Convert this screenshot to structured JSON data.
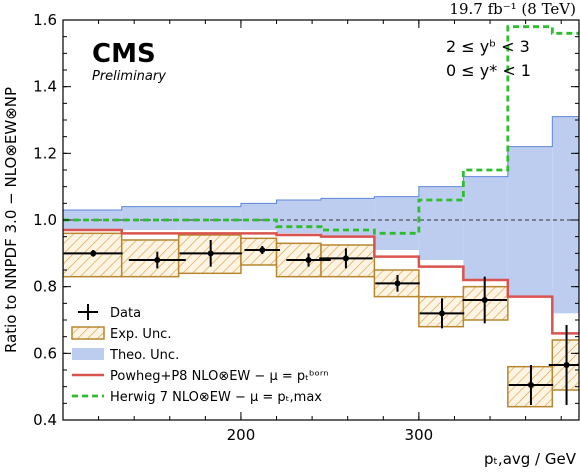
{
  "chart_data": {
    "type": "line",
    "lumi_label": "19.7 fb⁻¹ (8 TeV)",
    "experiment": "CMS",
    "status": "Preliminary",
    "cuts": [
      "2 ≤ yᵇ < 3",
      "0 ≤ y* < 1"
    ],
    "ylabel": "Ratio to NNPDF 3.0 − NLO⊗EW⊗NP",
    "xlabel": "pₜ,avg / GeV",
    "xlim": [
      100,
      390
    ],
    "ylim": [
      0.4,
      1.6
    ],
    "xticks": [
      200,
      300
    ],
    "yticks": [
      0.4,
      0.6,
      0.8,
      1.0,
      1.2,
      1.4,
      1.6
    ],
    "reference_line": 1.0,
    "bin_edges": [
      100,
      133,
      165,
      200,
      220,
      245,
      275,
      300,
      325,
      350,
      375,
      395
    ],
    "series": [
      {
        "name": "Data",
        "style": "points",
        "points": [
          {
            "x": 117,
            "y": 0.9,
            "yerr": 0.01
          },
          {
            "x": 153,
            "y": 0.88,
            "yerr": 0.025
          },
          {
            "x": 183,
            "y": 0.9,
            "yerr": 0.04
          },
          {
            "x": 212,
            "y": 0.91,
            "yerr": 0.012
          },
          {
            "x": 238,
            "y": 0.88,
            "yerr": 0.02
          },
          {
            "x": 259,
            "y": 0.885,
            "yerr": 0.03
          },
          {
            "x": 288,
            "y": 0.81,
            "yerr": 0.025
          },
          {
            "x": 313,
            "y": 0.72,
            "yerr": 0.045
          },
          {
            "x": 337,
            "y": 0.76,
            "yerr": 0.07
          },
          {
            "x": 363,
            "y": 0.505,
            "yerr": 0.06
          },
          {
            "x": 383,
            "y": 0.565,
            "yerr": 0.12
          }
        ]
      },
      {
        "name": "Exp. Unc.",
        "style": "hatched_band",
        "low": [
          0.83,
          0.83,
          0.84,
          0.865,
          0.83,
          0.83,
          0.77,
          0.68,
          0.7,
          0.44,
          0.49
        ],
        "high": [
          0.96,
          0.94,
          0.955,
          0.945,
          0.93,
          0.925,
          0.85,
          0.77,
          0.8,
          0.56,
          0.64
        ]
      },
      {
        "name": "Theo. Unc.",
        "style": "band",
        "low": [
          0.97,
          0.97,
          0.97,
          0.97,
          0.96,
          0.95,
          0.91,
          0.88,
          0.82,
          0.77,
          0.72
        ],
        "high": [
          1.03,
          1.04,
          1.04,
          1.05,
          1.06,
          1.065,
          1.07,
          1.1,
          1.13,
          1.22,
          1.31
        ]
      },
      {
        "name": "Powheg+P8 NLO⊗EW − μ = pₜᵇᵒʳⁿ",
        "style": "step",
        "color": "#d9534f",
        "values": [
          0.97,
          0.96,
          0.96,
          0.96,
          0.955,
          0.95,
          0.89,
          0.86,
          0.82,
          0.77,
          0.66
        ]
      },
      {
        "name": "Herwig 7 NLO⊗EW − μ = pₜ,max",
        "style": "step_dashed",
        "color": "#2ebd2e",
        "values": [
          1.0,
          1.0,
          1.0,
          1.0,
          0.98,
          0.97,
          0.96,
          1.06,
          1.15,
          1.58,
          1.56
        ]
      }
    ],
    "legend": {
      "position": "bottom-left",
      "entries": [
        "Data",
        "Exp. Unc.",
        "Theo. Unc.",
        "Powheg+P8 NLO⊗EW − μ = pₜᵇᵒʳⁿ",
        "Herwig 7 NLO⊗EW − μ = pₜ,max"
      ]
    },
    "colors": {
      "exp_band": "#e8a849",
      "theo_band": "#bccdf0",
      "theo_edge": "#5e86d9",
      "data": "#000000"
    }
  }
}
